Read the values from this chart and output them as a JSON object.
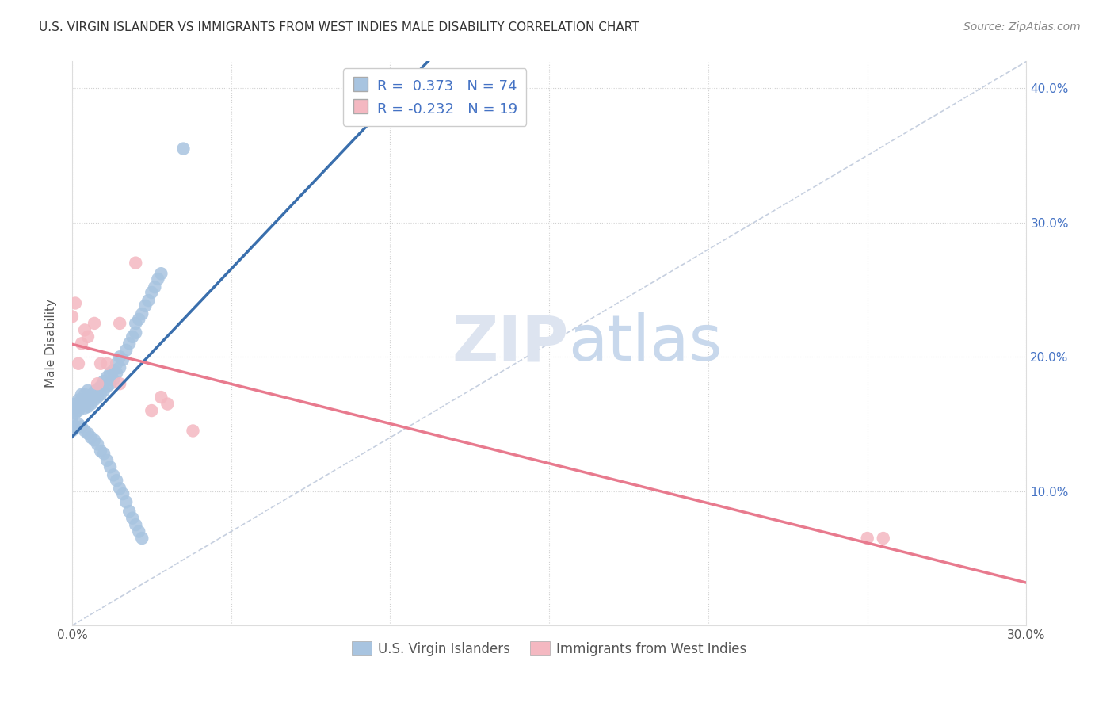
{
  "title": "U.S. VIRGIN ISLANDER VS IMMIGRANTS FROM WEST INDIES MALE DISABILITY CORRELATION CHART",
  "source": "Source: ZipAtlas.com",
  "ylabel": "Male Disability",
  "xlim": [
    0.0,
    0.3
  ],
  "ylim": [
    0.0,
    0.42
  ],
  "x_ticks": [
    0.0,
    0.05,
    0.1,
    0.15,
    0.2,
    0.25,
    0.3
  ],
  "y_ticks": [
    0.0,
    0.1,
    0.2,
    0.3,
    0.4
  ],
  "legend1_label": "R =  0.373   N = 74",
  "legend2_label": "R = -0.232   N = 19",
  "legend_bottom1": "U.S. Virgin Islanders",
  "legend_bottom2": "Immigrants from West Indies",
  "blue_color": "#a8c4e0",
  "pink_color": "#f4b8c1",
  "blue_line_color": "#3a6fad",
  "pink_line_color": "#e87a8e",
  "diag_line_color": "#b8c4d8",
  "blue_scatter_x": [
    0.0,
    0.001,
    0.001,
    0.001,
    0.002,
    0.002,
    0.002,
    0.003,
    0.003,
    0.003,
    0.004,
    0.004,
    0.004,
    0.005,
    0.005,
    0.005,
    0.006,
    0.006,
    0.007,
    0.007,
    0.008,
    0.008,
    0.009,
    0.009,
    0.01,
    0.01,
    0.011,
    0.011,
    0.012,
    0.012,
    0.013,
    0.013,
    0.014,
    0.014,
    0.015,
    0.015,
    0.016,
    0.017,
    0.018,
    0.019,
    0.02,
    0.02,
    0.021,
    0.022,
    0.023,
    0.024,
    0.025,
    0.026,
    0.027,
    0.028,
    0.0,
    0.001,
    0.002,
    0.003,
    0.004,
    0.005,
    0.006,
    0.007,
    0.008,
    0.009,
    0.01,
    0.011,
    0.012,
    0.013,
    0.014,
    0.015,
    0.016,
    0.017,
    0.018,
    0.019,
    0.02,
    0.021,
    0.022,
    0.035
  ],
  "blue_scatter_y": [
    0.155,
    0.158,
    0.162,
    0.165,
    0.16,
    0.163,
    0.168,
    0.165,
    0.168,
    0.172,
    0.162,
    0.167,
    0.172,
    0.163,
    0.168,
    0.175,
    0.165,
    0.17,
    0.168,
    0.174,
    0.17,
    0.176,
    0.172,
    0.178,
    0.175,
    0.182,
    0.178,
    0.185,
    0.18,
    0.188,
    0.183,
    0.19,
    0.188,
    0.195,
    0.192,
    0.2,
    0.198,
    0.205,
    0.21,
    0.215,
    0.218,
    0.225,
    0.228,
    0.232,
    0.238,
    0.242,
    0.248,
    0.252,
    0.258,
    0.262,
    0.145,
    0.148,
    0.15,
    0.148,
    0.145,
    0.143,
    0.14,
    0.138,
    0.135,
    0.13,
    0.128,
    0.123,
    0.118,
    0.112,
    0.108,
    0.102,
    0.098,
    0.092,
    0.085,
    0.08,
    0.075,
    0.07,
    0.065,
    0.355
  ],
  "pink_scatter_x": [
    0.0,
    0.001,
    0.002,
    0.003,
    0.004,
    0.005,
    0.007,
    0.009,
    0.011,
    0.015,
    0.02,
    0.025,
    0.03,
    0.038,
    0.25,
    0.255,
    0.015,
    0.008,
    0.028
  ],
  "pink_scatter_y": [
    0.23,
    0.24,
    0.195,
    0.21,
    0.22,
    0.215,
    0.225,
    0.195,
    0.195,
    0.225,
    0.27,
    0.16,
    0.165,
    0.145,
    0.065,
    0.065,
    0.18,
    0.18,
    0.17
  ]
}
